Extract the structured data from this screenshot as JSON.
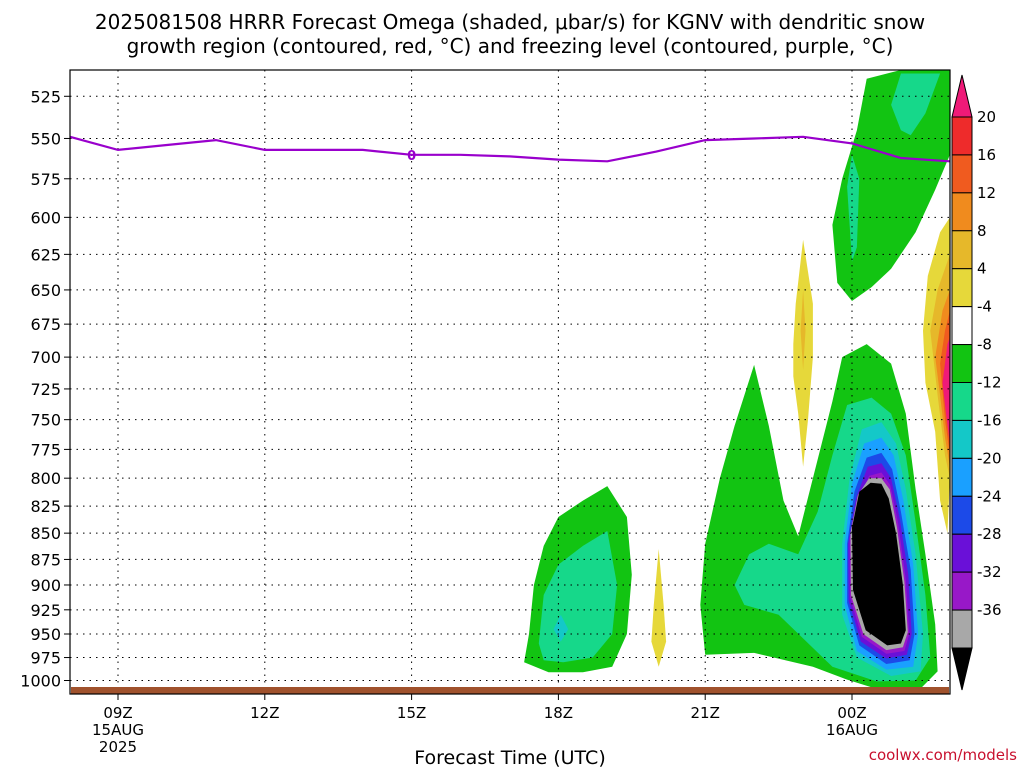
{
  "title_line1": "2025081508 HRRR Forecast Omega (shaded, μbar/s) for KGNV with dendritic snow",
  "title_line2": "growth region (contoured, red, °C) and freezing level (contoured, purple, °C)",
  "credit": "coolwx.com/models",
  "chart_data": {
    "type": "heatmap",
    "xlabel": "Forecast Time (UTC)",
    "ylabel": "",
    "x_hours_from_start": [
      0,
      27
    ],
    "x_ticks": [
      {
        "hour": 1,
        "lines": [
          "09Z",
          "15AUG",
          "2025"
        ]
      },
      {
        "hour": 4,
        "lines": [
          "12Z"
        ]
      },
      {
        "hour": 7,
        "lines": [
          "15Z"
        ]
      },
      {
        "hour": 10,
        "lines": [
          "18Z"
        ]
      },
      {
        "hour": 13,
        "lines": [
          "21Z"
        ]
      },
      {
        "hour": 16,
        "lines": [
          "00Z",
          "16AUG"
        ]
      }
    ],
    "y_scale": "log",
    "y_range_hPa": [
      1015,
      510
    ],
    "y_ticks": [
      525,
      550,
      575,
      600,
      625,
      650,
      675,
      700,
      725,
      750,
      775,
      800,
      825,
      850,
      875,
      900,
      925,
      950,
      975,
      1000
    ],
    "grid": true,
    "colorbar": {
      "levels": [
        20,
        16,
        12,
        8,
        4,
        -4,
        -8,
        -12,
        -16,
        -20,
        -24,
        -28,
        -32,
        -36
      ],
      "colors_top_to_bottom": [
        "#ef1a78",
        "#ee2b2b",
        "#f05b1f",
        "#f08b1e",
        "#e6b82a",
        "#e6d83a",
        "#ffffff",
        "#12c412",
        "#16d88a",
        "#14c8c8",
        "#1aa0ff",
        "#1c4ae8",
        "#6a10d8",
        "#9818c8",
        "#a8a8a8",
        "#000000"
      ]
    },
    "freezing_level": {
      "color": "#9900cc",
      "label": "0",
      "points": [
        {
          "hour": -0.1,
          "p": 549
        },
        {
          "hour": 1,
          "p": 557
        },
        {
          "hour": 2,
          "p": 554
        },
        {
          "hour": 3,
          "p": 551
        },
        {
          "hour": 4,
          "p": 557
        },
        {
          "hour": 5,
          "p": 557
        },
        {
          "hour": 6,
          "p": 557
        },
        {
          "hour": 7,
          "p": 560
        },
        {
          "hour": 8,
          "p": 560
        },
        {
          "hour": 9,
          "p": 561
        },
        {
          "hour": 10,
          "p": 563
        },
        {
          "hour": 11,
          "p": 564
        },
        {
          "hour": 12,
          "p": 558
        },
        {
          "hour": 13,
          "p": 551
        },
        {
          "hour": 14,
          "p": 550
        },
        {
          "hour": 15,
          "p": 549
        },
        {
          "hour": 16,
          "p": 553
        },
        {
          "hour": 17,
          "p": 562
        },
        {
          "hour": 18,
          "p": 564
        }
      ]
    },
    "shaded_regions": [
      {
        "name": "omega -8 region 18Z",
        "color": "#12c412",
        "points": [
          [
            9.3,
            980
          ],
          [
            9.4,
            950
          ],
          [
            9.5,
            900
          ],
          [
            9.7,
            862
          ],
          [
            10,
            835
          ],
          [
            10.5,
            820
          ],
          [
            11.0,
            807
          ],
          [
            11.4,
            835
          ],
          [
            11.5,
            890
          ],
          [
            11.4,
            950
          ],
          [
            11.1,
            985
          ],
          [
            10.5,
            991
          ],
          [
            9.8,
            991
          ]
        ]
      },
      {
        "name": "omega -12 region 18Z",
        "color": "#16d88a",
        "points": [
          [
            9.6,
            960
          ],
          [
            9.7,
            910
          ],
          [
            10,
            880
          ],
          [
            10.5,
            862
          ],
          [
            11.0,
            848
          ],
          [
            11.2,
            900
          ],
          [
            11.1,
            950
          ],
          [
            10.7,
            975
          ],
          [
            10.1,
            980
          ],
          [
            9.7,
            978
          ]
        ]
      },
      {
        "name": "omega -16 spot 18Z",
        "color": "#14c8c8",
        "points": [
          [
            9.9,
            945
          ],
          [
            10.05,
            930
          ],
          [
            10.2,
            945
          ],
          [
            10.05,
            958
          ]
        ]
      },
      {
        "name": "omega +4 spot 20Z",
        "color": "#e6d83a",
        "points": [
          [
            11.9,
            958
          ],
          [
            11.95,
            920
          ],
          [
            12.05,
            865
          ],
          [
            12.15,
            920
          ],
          [
            12.2,
            958
          ],
          [
            12.05,
            985
          ]
        ]
      },
      {
        "name": "omega -8 region 22Z-00Z",
        "color": "#12c412",
        "points": [
          [
            13.0,
            972
          ],
          [
            12.9,
            920
          ],
          [
            13.0,
            860
          ],
          [
            13.3,
            800
          ],
          [
            13.6,
            755
          ],
          [
            14.0,
            706
          ],
          [
            14.3,
            755
          ],
          [
            14.6,
            820
          ],
          [
            14.9,
            853
          ],
          [
            15.2,
            800
          ],
          [
            15.6,
            735
          ],
          [
            15.8,
            700
          ],
          [
            16.3,
            690
          ],
          [
            16.8,
            705
          ],
          [
            17.1,
            745
          ],
          [
            17.3,
            810
          ],
          [
            17.5,
            870
          ],
          [
            17.7,
            940
          ],
          [
            17.75,
            990
          ],
          [
            17.4,
            1009
          ],
          [
            16.6,
            1011
          ],
          [
            15.9,
            999
          ],
          [
            15.2,
            985
          ],
          [
            14.0,
            970
          ]
        ]
      },
      {
        "name": "omega -12 region 22Z-00Z",
        "color": "#16d88a",
        "points": [
          [
            13.6,
            900
          ],
          [
            13.9,
            870
          ],
          [
            14.3,
            860
          ],
          [
            14.9,
            870
          ],
          [
            15.3,
            830
          ],
          [
            15.6,
            780
          ],
          [
            15.9,
            738
          ],
          [
            16.4,
            732
          ],
          [
            16.8,
            745
          ],
          [
            17.1,
            780
          ],
          [
            17.3,
            840
          ],
          [
            17.5,
            910
          ],
          [
            17.6,
            975
          ],
          [
            17.3,
            1000
          ],
          [
            16.5,
            1001
          ],
          [
            15.6,
            985
          ],
          [
            14.5,
            930
          ],
          [
            13.8,
            920
          ]
        ]
      },
      {
        "name": "omega -16 region",
        "color": "#14c8c8",
        "points": [
          [
            15.8,
            860
          ],
          [
            15.95,
            800
          ],
          [
            16.2,
            758
          ],
          [
            16.6,
            752
          ],
          [
            16.9,
            770
          ],
          [
            17.1,
            810
          ],
          [
            17.3,
            870
          ],
          [
            17.45,
            950
          ],
          [
            17.4,
            990
          ],
          [
            16.8,
            995
          ],
          [
            16.1,
            975
          ],
          [
            15.8,
            930
          ]
        ]
      },
      {
        "name": "omega -20 region",
        "color": "#1aa0ff",
        "points": [
          [
            15.85,
            860
          ],
          [
            16.0,
            805
          ],
          [
            16.25,
            770
          ],
          [
            16.6,
            765
          ],
          [
            16.85,
            780
          ],
          [
            17.05,
            820
          ],
          [
            17.25,
            880
          ],
          [
            17.35,
            950
          ],
          [
            17.25,
            985
          ],
          [
            16.7,
            988
          ],
          [
            16.1,
            968
          ],
          [
            15.85,
            920
          ]
        ]
      },
      {
        "name": "omega -24 region",
        "color": "#1c4ae8",
        "points": [
          [
            15.9,
            860
          ],
          [
            16.05,
            812
          ],
          [
            16.3,
            782
          ],
          [
            16.6,
            778
          ],
          [
            16.82,
            792
          ],
          [
            17.0,
            830
          ],
          [
            17.2,
            885
          ],
          [
            17.28,
            950
          ],
          [
            17.18,
            978
          ],
          [
            16.7,
            982
          ],
          [
            16.15,
            962
          ],
          [
            15.9,
            918
          ]
        ]
      },
      {
        "name": "omega -28 region",
        "color": "#6a10d8",
        "points": [
          [
            15.92,
            860
          ],
          [
            16.08,
            818
          ],
          [
            16.32,
            790
          ],
          [
            16.6,
            787
          ],
          [
            16.8,
            800
          ],
          [
            16.97,
            835
          ],
          [
            17.15,
            890
          ],
          [
            17.22,
            950
          ],
          [
            17.12,
            972
          ],
          [
            16.7,
            976
          ],
          [
            16.18,
            958
          ],
          [
            15.93,
            916
          ]
        ]
      },
      {
        "name": "omega -32 region",
        "color": "#9818c8",
        "points": [
          [
            15.95,
            855
          ],
          [
            16.1,
            822
          ],
          [
            16.35,
            798
          ],
          [
            16.6,
            795
          ],
          [
            16.78,
            806
          ],
          [
            16.94,
            840
          ],
          [
            17.1,
            895
          ],
          [
            17.17,
            950
          ],
          [
            17.07,
            968
          ],
          [
            16.7,
            971
          ],
          [
            16.2,
            953
          ],
          [
            15.96,
            912
          ]
        ]
      },
      {
        "name": "omega -36 region",
        "color": "#a8a8a8",
        "points": [
          [
            15.97,
            850
          ],
          [
            16.12,
            815
          ],
          [
            16.35,
            800
          ],
          [
            16.6,
            800
          ],
          [
            16.77,
            810
          ],
          [
            16.92,
            845
          ],
          [
            17.07,
            897
          ],
          [
            17.14,
            948
          ],
          [
            17.04,
            964
          ],
          [
            16.7,
            967
          ],
          [
            16.23,
            950
          ],
          [
            15.98,
            910
          ]
        ]
      },
      {
        "name": "omega below -36 core",
        "color": "#000000",
        "points": [
          [
            16.0,
            845
          ],
          [
            16.15,
            812
          ],
          [
            16.38,
            804
          ],
          [
            16.6,
            805
          ],
          [
            16.75,
            818
          ],
          [
            16.9,
            850
          ],
          [
            17.04,
            900
          ],
          [
            17.1,
            946
          ],
          [
            17.0,
            960
          ],
          [
            16.72,
            962
          ],
          [
            16.28,
            946
          ],
          [
            16.02,
            905
          ]
        ]
      },
      {
        "name": "omega +4 spot 23Z",
        "color": "#e6d83a",
        "points": [
          [
            14.8,
            690
          ],
          [
            14.85,
            660
          ],
          [
            15.0,
            615
          ],
          [
            15.2,
            660
          ],
          [
            15.2,
            700
          ],
          [
            15.1,
            750
          ],
          [
            15.0,
            790
          ],
          [
            14.9,
            745
          ],
          [
            14.8,
            715
          ]
        ]
      },
      {
        "name": "omega +8 spot 23Z",
        "color": "#e6b82a",
        "points": [
          [
            14.95,
            680
          ],
          [
            15.0,
            650
          ],
          [
            15.05,
            680
          ],
          [
            15.0,
            710
          ]
        ]
      },
      {
        "name": "omega -8 upper region",
        "color": "#12c412",
        "points": [
          [
            15.6,
            605
          ],
          [
            15.8,
            575
          ],
          [
            16.1,
            545
          ],
          [
            16.3,
            515
          ],
          [
            17.0,
            510
          ],
          [
            18.0,
            510
          ],
          [
            18.0,
            560
          ],
          [
            17.7,
            582
          ],
          [
            17.3,
            610
          ],
          [
            16.8,
            635
          ],
          [
            16.4,
            648
          ],
          [
            16.0,
            658
          ],
          [
            15.7,
            645
          ]
        ]
      },
      {
        "name": "omega -12 upper region",
        "color": "#16d88a",
        "points": [
          [
            15.9,
            580
          ],
          [
            16.0,
            560
          ],
          [
            16.15,
            575
          ],
          [
            16.1,
            620
          ],
          [
            16.0,
            630
          ]
        ]
      },
      {
        "name": "omega -12 top region",
        "color": "#16d88a",
        "points": [
          [
            16.8,
            530
          ],
          [
            17.0,
            512
          ],
          [
            17.8,
            512
          ],
          [
            17.5,
            535
          ],
          [
            17.2,
            548
          ],
          [
            17.0,
            545
          ]
        ]
      },
      {
        "name": "omega +4 right edge",
        "color": "#e6d83a",
        "points": [
          [
            17.45,
            680
          ],
          [
            17.55,
            640
          ],
          [
            17.8,
            610
          ],
          [
            18.0,
            600
          ],
          [
            18.0,
            800
          ],
          [
            17.95,
            850
          ],
          [
            17.8,
            820
          ],
          [
            17.7,
            760
          ],
          [
            17.5,
            720
          ]
        ]
      },
      {
        "name": "omega +8 right edge",
        "color": "#e6b82a",
        "points": [
          [
            17.6,
            680
          ],
          [
            17.75,
            650
          ],
          [
            18.0,
            625
          ],
          [
            18.0,
            800
          ],
          [
            17.9,
            780
          ],
          [
            17.75,
            730
          ]
        ]
      },
      {
        "name": "omega +12 right edge",
        "color": "#f08b1e",
        "points": [
          [
            17.7,
            700
          ],
          [
            17.85,
            665
          ],
          [
            18.0,
            650
          ],
          [
            18.0,
            790
          ],
          [
            17.9,
            765
          ],
          [
            17.8,
            730
          ]
        ]
      },
      {
        "name": "omega +16 right edge",
        "color": "#f05b1f",
        "points": [
          [
            17.8,
            705
          ],
          [
            17.9,
            680
          ],
          [
            18.0,
            665
          ],
          [
            18.0,
            780
          ],
          [
            17.9,
            750
          ]
        ]
      },
      {
        "name": "omega +20 right edge",
        "color": "#ef1a78",
        "points": [
          [
            17.85,
            720
          ],
          [
            17.95,
            690
          ],
          [
            18.0,
            685
          ],
          [
            18.0,
            770
          ],
          [
            17.92,
            745
          ]
        ]
      }
    ],
    "terrain_color": "#a0522d"
  }
}
